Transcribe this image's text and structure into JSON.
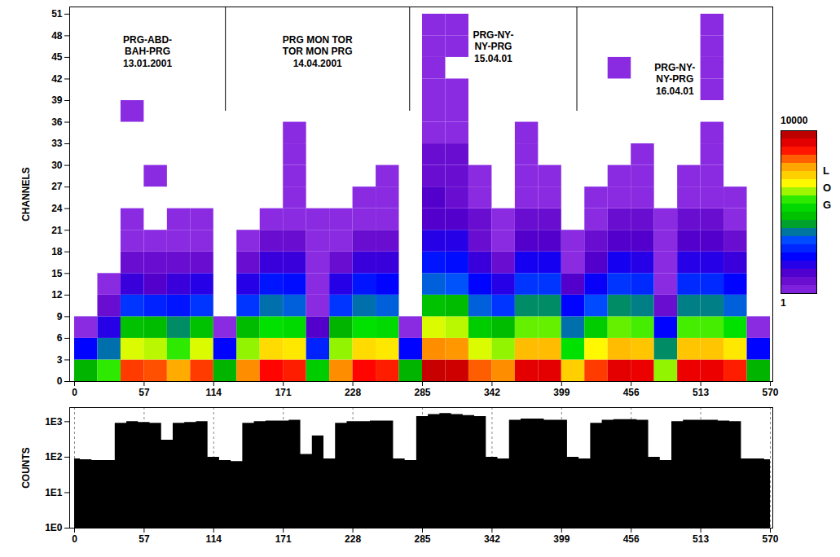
{
  "chart_data": [
    {
      "type": "heatmap",
      "y_label": "CHANNELS",
      "xlim": [
        -4,
        572
      ],
      "xticks": [
        0,
        57,
        114,
        171,
        228,
        285,
        342,
        399,
        456,
        513,
        570
      ],
      "ylim": [
        0,
        52
      ],
      "yticks": [
        0,
        3,
        6,
        9,
        12,
        15,
        18,
        21,
        24,
        27,
        30,
        33,
        36,
        39,
        42,
        45,
        48,
        51
      ],
      "annotations": [
        "PRG-ABD-\nBAH-PRG\n13.01.2001",
        "PRG MON TOR\nTOR MON PRG\n14.04.2001",
        "PRG-NY-\nNY-PRG\n15.04.01",
        "PRG-NY-\nNY-PRG\n16.04.01"
      ],
      "dividers": [
        123.6,
        274.5,
        411.5
      ],
      "cell_x_edges": [
        0,
        19,
        38,
        57,
        76,
        95,
        114,
        133,
        152,
        171,
        190,
        209,
        228,
        247,
        266,
        285,
        304,
        323,
        342,
        361,
        380,
        399,
        418,
        437,
        456,
        475,
        494,
        513,
        532,
        551,
        570
      ],
      "cell_channel_edges": [
        0,
        3,
        6,
        9,
        12,
        15,
        18,
        21,
        24,
        27,
        30,
        33,
        36,
        39,
        42,
        45,
        48,
        51
      ],
      "cells": [
        [
          60,
          8,
          1,
          0,
          0,
          0,
          0,
          0,
          0,
          0,
          0,
          0,
          0,
          0,
          0,
          0,
          0
        ],
        [
          200,
          30,
          5,
          2,
          1,
          0,
          0,
          0,
          0,
          0,
          0,
          0,
          0,
          0,
          0,
          0,
          0
        ],
        [
          2500,
          400,
          80,
          15,
          4,
          2,
          1,
          1,
          0,
          0,
          0,
          0,
          1,
          0,
          0,
          0,
          0
        ],
        [
          2200,
          350,
          70,
          12,
          3,
          2,
          1,
          0,
          0,
          1,
          0,
          0,
          0,
          0,
          0,
          0,
          0
        ],
        [
          1200,
          200,
          40,
          10,
          4,
          2,
          1,
          1,
          0,
          0,
          0,
          0,
          0,
          0,
          0,
          0,
          0
        ],
        [
          2500,
          400,
          80,
          15,
          5,
          2,
          1,
          1,
          0,
          0,
          0,
          0,
          0,
          0,
          0,
          0,
          0
        ],
        [
          60,
          8,
          1,
          0,
          0,
          0,
          0,
          0,
          0,
          0,
          0,
          0,
          0,
          0,
          0,
          0,
          0
        ],
        [
          1500,
          300,
          70,
          15,
          5,
          2,
          1,
          0,
          0,
          0,
          0,
          0,
          0,
          0,
          0,
          0,
          0
        ],
        [
          3500,
          700,
          150,
          30,
          10,
          4,
          2,
          1,
          0,
          0,
          0,
          0,
          0,
          0,
          0,
          0,
          0
        ],
        [
          3000,
          600,
          130,
          25,
          9,
          4,
          2,
          1,
          1,
          1,
          1,
          1,
          0,
          0,
          0,
          0,
          0
        ],
        [
          100,
          12,
          3,
          1,
          1,
          1,
          1,
          1,
          0,
          0,
          0,
          0,
          0,
          0,
          0,
          0,
          0
        ],
        [
          1500,
          300,
          60,
          15,
          5,
          2,
          1,
          1,
          0,
          0,
          0,
          0,
          0,
          0,
          0,
          0,
          0
        ],
        [
          3500,
          700,
          150,
          30,
          10,
          4,
          2,
          1,
          1,
          0,
          0,
          0,
          0,
          0,
          0,
          0,
          0
        ],
        [
          3000,
          600,
          130,
          25,
          8,
          4,
          2,
          1,
          1,
          1,
          0,
          0,
          0,
          0,
          0,
          0,
          0
        ],
        [
          60,
          8,
          1,
          0,
          0,
          0,
          0,
          0,
          0,
          0,
          0,
          0,
          0,
          0,
          0,
          0,
          0
        ],
        [
          7000,
          1500,
          400,
          80,
          25,
          10,
          5,
          3,
          3,
          2,
          2,
          1,
          1,
          1,
          1,
          1,
          1
        ],
        [
          6500,
          1400,
          350,
          70,
          22,
          9,
          5,
          3,
          2,
          2,
          2,
          1,
          1,
          1,
          0,
          1,
          1
        ],
        [
          2000,
          400,
          100,
          25,
          8,
          4,
          2,
          2,
          1,
          1,
          0,
          0,
          0,
          0,
          0,
          0,
          0
        ],
        [
          1500,
          300,
          70,
          15,
          5,
          2,
          1,
          1,
          0,
          0,
          0,
          0,
          0,
          0,
          0,
          0,
          0
        ],
        [
          5000,
          1000,
          250,
          40,
          15,
          6,
          3,
          2,
          1,
          1,
          1,
          1,
          0,
          0,
          0,
          0,
          0
        ],
        [
          5000,
          1000,
          250,
          40,
          15,
          6,
          3,
          2,
          1,
          1,
          0,
          0,
          0,
          0,
          0,
          0,
          0
        ],
        [
          800,
          150,
          30,
          8,
          3,
          1,
          1,
          0,
          0,
          0,
          0,
          0,
          0,
          0,
          0,
          0,
          0
        ],
        [
          2500,
          500,
          100,
          20,
          7,
          3,
          2,
          1,
          1,
          0,
          0,
          0,
          0,
          0,
          0,
          0,
          0
        ],
        [
          5000,
          1000,
          250,
          40,
          15,
          6,
          3,
          2,
          1,
          1,
          0,
          0,
          0,
          0,
          1,
          0,
          0
        ],
        [
          4500,
          900,
          220,
          35,
          13,
          5,
          3,
          2,
          1,
          1,
          1,
          0,
          0,
          0,
          0,
          0,
          0
        ],
        [
          300,
          40,
          8,
          2,
          1,
          1,
          1,
          1,
          0,
          0,
          0,
          0,
          0,
          0,
          0,
          0,
          0
        ],
        [
          4500,
          900,
          220,
          35,
          13,
          5,
          3,
          2,
          1,
          1,
          0,
          0,
          0,
          0,
          0,
          0,
          0
        ],
        [
          4500,
          900,
          220,
          35,
          13,
          5,
          3,
          2,
          1,
          1,
          1,
          1,
          0,
          1,
          1,
          1,
          1
        ],
        [
          3000,
          600,
          150,
          25,
          8,
          4,
          2,
          1,
          1,
          0,
          0,
          0,
          0,
          0,
          0,
          0,
          0
        ],
        [
          60,
          8,
          1,
          0,
          0,
          0,
          0,
          0,
          0,
          0,
          0,
          0,
          0,
          0,
          0,
          0,
          0
        ]
      ],
      "colorbar": {
        "range": [
          1,
          10000
        ],
        "ticks": [
          1,
          10000
        ],
        "label": "LOG",
        "log": true,
        "colors": [
          "#8a2be2",
          "#5a00c8",
          "#0000ff",
          "#0050ff",
          "#00b400",
          "#00e600",
          "#ffff00",
          "#ffa500",
          "#ff0000",
          "#aa0000"
        ]
      }
    },
    {
      "type": "area",
      "y_label": "COUNTS",
      "log": "y",
      "grid": true,
      "color": "#000000",
      "xlim": [
        -4,
        572
      ],
      "xticks": [
        0,
        57,
        114,
        171,
        228,
        285,
        342,
        399,
        456,
        513,
        570
      ],
      "ylim": [
        1,
        2500
      ],
      "yticks": [
        {
          "value": 1,
          "label": "1E0"
        },
        {
          "value": 10,
          "label": "1E1"
        },
        {
          "value": 100,
          "label": "1E2"
        },
        {
          "value": 1000,
          "label": "1E3"
        }
      ],
      "x": [
        0,
        9.5,
        19,
        28.5,
        38,
        47.5,
        57,
        66.5,
        76,
        85.5,
        95,
        104.5,
        114,
        123.5,
        133,
        142.5,
        152,
        161.5,
        171,
        180.5,
        190,
        199.5,
        209,
        218.5,
        228,
        237.5,
        247,
        256.5,
        266,
        275.5,
        285,
        294.5,
        304,
        313.5,
        323,
        332.5,
        342,
        351.5,
        361,
        370.5,
        380,
        389.5,
        399,
        408.5,
        418,
        427.5,
        437,
        446.5,
        456,
        465.5,
        475,
        484.5,
        494,
        503.5,
        513,
        522.5,
        532,
        541.5,
        551,
        560.5,
        570
      ],
      "values": [
        90,
        85,
        80,
        80,
        900,
        1000,
        950,
        900,
        300,
        900,
        950,
        1000,
        100,
        80,
        75,
        900,
        1000,
        1050,
        1050,
        1100,
        120,
        400,
        90,
        900,
        1000,
        1000,
        1050,
        1050,
        90,
        80,
        1400,
        1600,
        1700,
        1600,
        1500,
        1400,
        100,
        90,
        1100,
        1200,
        1200,
        1100,
        1100,
        100,
        90,
        900,
        1100,
        1150,
        1150,
        1100,
        100,
        80,
        1000,
        1100,
        1100,
        1100,
        1050,
        1000,
        90,
        90,
        85
      ]
    }
  ]
}
